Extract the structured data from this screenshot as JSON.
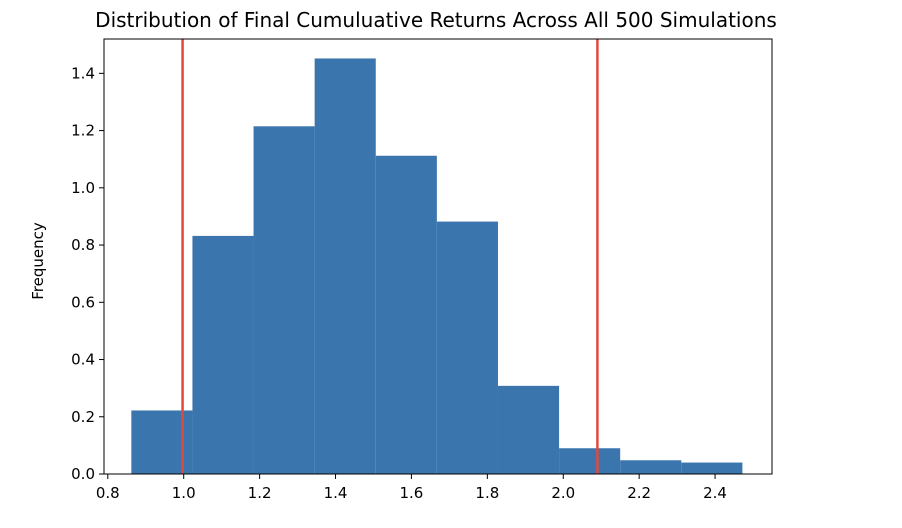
{
  "chart_data": {
    "type": "bar",
    "title": "Distribution of Final Cumuluative Returns Across All 500 Simulations",
    "xlabel": "",
    "ylabel": "Frequency",
    "xlim": [
      0.79,
      2.55
    ],
    "ylim": [
      0,
      1.52
    ],
    "xticks": [
      0.8,
      1.0,
      1.2,
      1.4,
      1.6,
      1.8,
      2.0,
      2.2,
      2.4
    ],
    "xtick_labels": [
      "0.8",
      "1.0",
      "1.2",
      "1.4",
      "1.6",
      "1.8",
      "2.0",
      "2.2",
      "2.4"
    ],
    "yticks": [
      0.0,
      0.2,
      0.4,
      0.6,
      0.8,
      1.0,
      1.2,
      1.4
    ],
    "ytick_labels": [
      "0.0",
      "0.2",
      "0.4",
      "0.6",
      "0.8",
      "1.0",
      "1.2",
      "1.4"
    ],
    "bins": [
      {
        "x0": 0.862,
        "x1": 1.023,
        "value": 0.222
      },
      {
        "x0": 1.023,
        "x1": 1.184,
        "value": 0.832
      },
      {
        "x0": 1.184,
        "x1": 1.345,
        "value": 1.215
      },
      {
        "x0": 1.345,
        "x1": 1.506,
        "value": 1.452
      },
      {
        "x0": 1.506,
        "x1": 1.667,
        "value": 1.112
      },
      {
        "x0": 1.667,
        "x1": 1.828,
        "value": 0.882
      },
      {
        "x0": 1.828,
        "x1": 1.989,
        "value": 0.308
      },
      {
        "x0": 1.989,
        "x1": 2.15,
        "value": 0.09
      },
      {
        "x0": 2.15,
        "x1": 2.311,
        "value": 0.048
      },
      {
        "x0": 2.311,
        "x1": 2.472,
        "value": 0.04
      }
    ],
    "vlines": [
      0.997,
      2.09
    ],
    "bar_color": "#3a75ae",
    "vline_color": "#e0493c",
    "grid": false,
    "legend": "none"
  }
}
